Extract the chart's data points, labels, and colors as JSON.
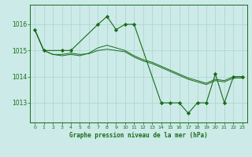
{
  "title": "Graphe pression niveau de la mer (hPa)",
  "bg_color": "#cceae7",
  "line_color": "#1a6b1a",
  "grid_color": "#aad4d0",
  "series_marked": {
    "x": [
      0,
      1,
      3,
      4,
      7,
      8,
      9,
      10,
      11,
      14,
      15,
      16,
      17,
      18,
      19,
      20,
      21,
      22,
      23
    ],
    "y": [
      1015.8,
      1015.0,
      1015.0,
      1015.0,
      1016.0,
      1016.3,
      1015.8,
      1016.0,
      1016.0,
      1013.0,
      1013.0,
      1013.0,
      1012.6,
      1013.0,
      1013.0,
      1014.1,
      1013.0,
      1014.0,
      1014.0
    ]
  },
  "series_smooth1": {
    "x": [
      0,
      1,
      2,
      3,
      4,
      5,
      6,
      7,
      8,
      9,
      10,
      11,
      12,
      13,
      14,
      15,
      16,
      17,
      18,
      19,
      20,
      21,
      22,
      23
    ],
    "y": [
      1015.8,
      1015.0,
      1014.85,
      1014.8,
      1014.85,
      1014.8,
      1014.9,
      1015.1,
      1015.2,
      1015.1,
      1015.0,
      1014.8,
      1014.65,
      1014.55,
      1014.4,
      1014.25,
      1014.1,
      1013.95,
      1013.85,
      1013.75,
      1013.9,
      1013.85,
      1014.0,
      1014.0
    ]
  },
  "series_smooth2": {
    "x": [
      0,
      1,
      2,
      3,
      4,
      5,
      6,
      7,
      8,
      9,
      10,
      11,
      12,
      13,
      14,
      15,
      16,
      17,
      18,
      19,
      20,
      21,
      22,
      23
    ],
    "y": [
      1015.8,
      1015.0,
      1014.85,
      1014.85,
      1014.9,
      1014.85,
      1014.88,
      1015.0,
      1015.05,
      1015.0,
      1014.95,
      1014.75,
      1014.6,
      1014.5,
      1014.35,
      1014.2,
      1014.05,
      1013.9,
      1013.8,
      1013.7,
      1013.85,
      1013.8,
      1013.95,
      1013.95
    ]
  },
  "ylim": [
    1012.25,
    1016.75
  ],
  "yticks": [
    1013,
    1014,
    1015,
    1016
  ],
  "xlim": [
    -0.5,
    23.5
  ],
  "xticks": [
    0,
    1,
    2,
    3,
    4,
    5,
    6,
    7,
    8,
    9,
    10,
    11,
    12,
    13,
    14,
    15,
    16,
    17,
    18,
    19,
    20,
    21,
    22,
    23
  ]
}
